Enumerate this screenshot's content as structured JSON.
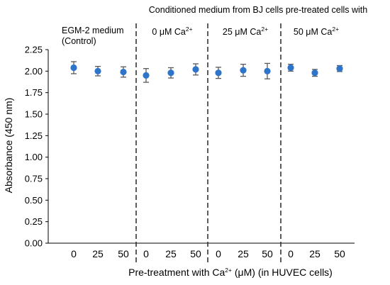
{
  "chart_data": {
    "type": "scatter",
    "title": "Conditioned medium from BJ cells pre-treated cells with",
    "ylabel": "Absorbance (450 nm)",
    "xlabel": {
      "before": "Pre-treatment with Ca",
      "sup": "2+",
      "after": " (μM) (in HUVEC cells)"
    },
    "ylim": [
      0,
      2.25
    ],
    "yticks": [
      "0.00",
      "0.25",
      "0.50",
      "0.75",
      "1.00",
      "1.25",
      "1.50",
      "1.75",
      "2.00",
      "2.25"
    ],
    "grid": false,
    "marker_color": "#2e75c9",
    "errorbar_color": "#595959",
    "groups": [
      {
        "label_lines": [
          "EGM-2 medium",
          "(Control)"
        ],
        "categories": [
          "0",
          "25",
          "50"
        ],
        "values": [
          2.04,
          2.0,
          1.99
        ],
        "errors": [
          0.07,
          0.055,
          0.06
        ]
      },
      {
        "label": {
          "before": "0 μM  Ca",
          "sup": "2+"
        },
        "categories": [
          "0",
          "25",
          "50"
        ],
        "values": [
          1.95,
          1.98,
          2.02
        ],
        "errors": [
          0.08,
          0.06,
          0.065
        ]
      },
      {
        "label": {
          "before": "25 μM  Ca",
          "sup": "2+"
        },
        "categories": [
          "0",
          "25",
          "50"
        ],
        "values": [
          1.98,
          2.01,
          2.0
        ],
        "errors": [
          0.065,
          0.07,
          0.09
        ]
      },
      {
        "label": {
          "before": "50 μM  Ca",
          "sup": "2+"
        },
        "categories": [
          "0",
          "25",
          "50"
        ],
        "values": [
          2.04,
          1.98,
          2.03
        ],
        "errors": [
          0.04,
          0.04,
          0.035
        ]
      }
    ]
  }
}
